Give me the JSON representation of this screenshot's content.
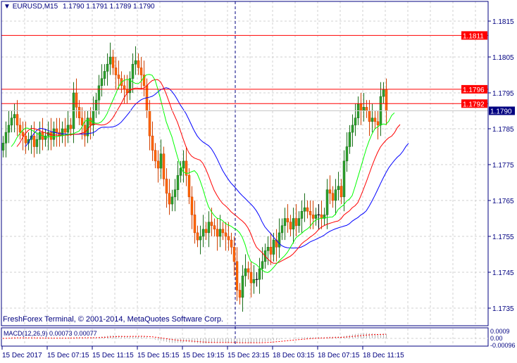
{
  "header": {
    "symbol_info": "EURUSD,M15",
    "ohlc": "1.1790 1.1791 1.1789 1.1790"
  },
  "footer": {
    "copyright": "FreshForex Terminal, © 2001-2014, MetaQuotes Software Corp."
  },
  "macd": {
    "label": "MACD(12,26,9) 0.00073 0.00077",
    "axis_labels": [
      "0.0009",
      "0.00",
      "-0.00096"
    ]
  },
  "colors": {
    "frame": "#000080",
    "bull": "#2ca02c",
    "bear": "#ff6600",
    "lips": "#00ff00",
    "teeth": "#ff0000",
    "jaw": "#0000ff",
    "level": "#ff0000",
    "bid": "#000080"
  },
  "chart_data": {
    "type": "candlestick",
    "symbol": "EURUSD",
    "timeframe": "M15",
    "ylim": [
      1.1731,
      1.1821
    ],
    "y_ticks": [
      "1.1815",
      "1.1805",
      "1.1795",
      "1.1785",
      "1.1775",
      "1.1765",
      "1.1755",
      "1.1745",
      "1.1735"
    ],
    "x_ticks": [
      "15 Dec 2017",
      "15 Dec 07:15",
      "15 Dec 11:15",
      "15 Dec 15:15",
      "15 Dec 19:15",
      "15 Dec 23:15",
      "18 Dec 03:15",
      "18 Dec 07:15",
      "18 Dec 11:15"
    ],
    "grid": true,
    "close": [
      1.1781,
      1.1784,
      1.1786,
      1.1788,
      1.1789,
      1.1786,
      1.1784,
      1.1783,
      1.1781,
      1.1782,
      1.1783,
      1.178,
      1.1782,
      1.1784,
      1.1782,
      1.1783,
      1.1784,
      1.1782,
      1.1785,
      1.1784,
      1.1783,
      1.1785,
      1.1784,
      1.1786,
      1.1785,
      1.1795,
      1.1791,
      1.1788,
      1.1786,
      1.1783,
      1.1788,
      1.1786,
      1.179,
      1.1793,
      1.1797,
      1.1799,
      1.1801,
      1.1803,
      1.1805,
      1.1802,
      1.18,
      1.1799,
      1.1797,
      1.1796,
      1.1795,
      1.1799,
      1.1803,
      1.1804,
      1.1802,
      1.18,
      1.1797,
      1.179,
      1.1783,
      1.1779,
      1.1776,
      1.1774,
      1.1778,
      1.1771,
      1.1767,
      1.1764,
      1.1766,
      1.1768,
      1.1772,
      1.1774,
      1.1776,
      1.1772,
      1.1766,
      1.1761,
      1.1756,
      1.1754,
      1.1755,
      1.1757,
      1.1756,
      1.1759,
      1.1758,
      1.1757,
      1.1755,
      1.1757,
      1.1756,
      1.1755,
      1.1754,
      1.1752,
      1.1748,
      1.174,
      1.1738,
      1.1744,
      1.1746,
      1.1745,
      1.1742,
      1.1743,
      1.1743,
      1.1746,
      1.1748,
      1.1751,
      1.1752,
      1.175,
      1.1754,
      1.1752,
      1.1756,
      1.1758,
      1.176,
      1.1759,
      1.1757,
      1.176,
      1.1758,
      1.176,
      1.1762,
      1.1763,
      1.1762,
      1.1761,
      1.176,
      1.1761,
      1.1761,
      1.176,
      1.1761,
      1.1768,
      1.1767,
      1.1765,
      1.1768,
      1.1769,
      1.1766,
      1.1776,
      1.178,
      1.1784,
      1.1786,
      1.1788,
      1.1792,
      1.179,
      1.1791,
      1.179,
      1.1787,
      1.1788,
      1.1787,
      1.1786,
      1.1794,
      1.1796,
      1.179
    ],
    "levels": [
      {
        "price": "1.1811"
      },
      {
        "price": "1.1796"
      },
      {
        "price": "1.1792"
      }
    ],
    "bid": "1.1790",
    "indicators": [
      "Alligator",
      "MACD(12,26,9)"
    ]
  }
}
